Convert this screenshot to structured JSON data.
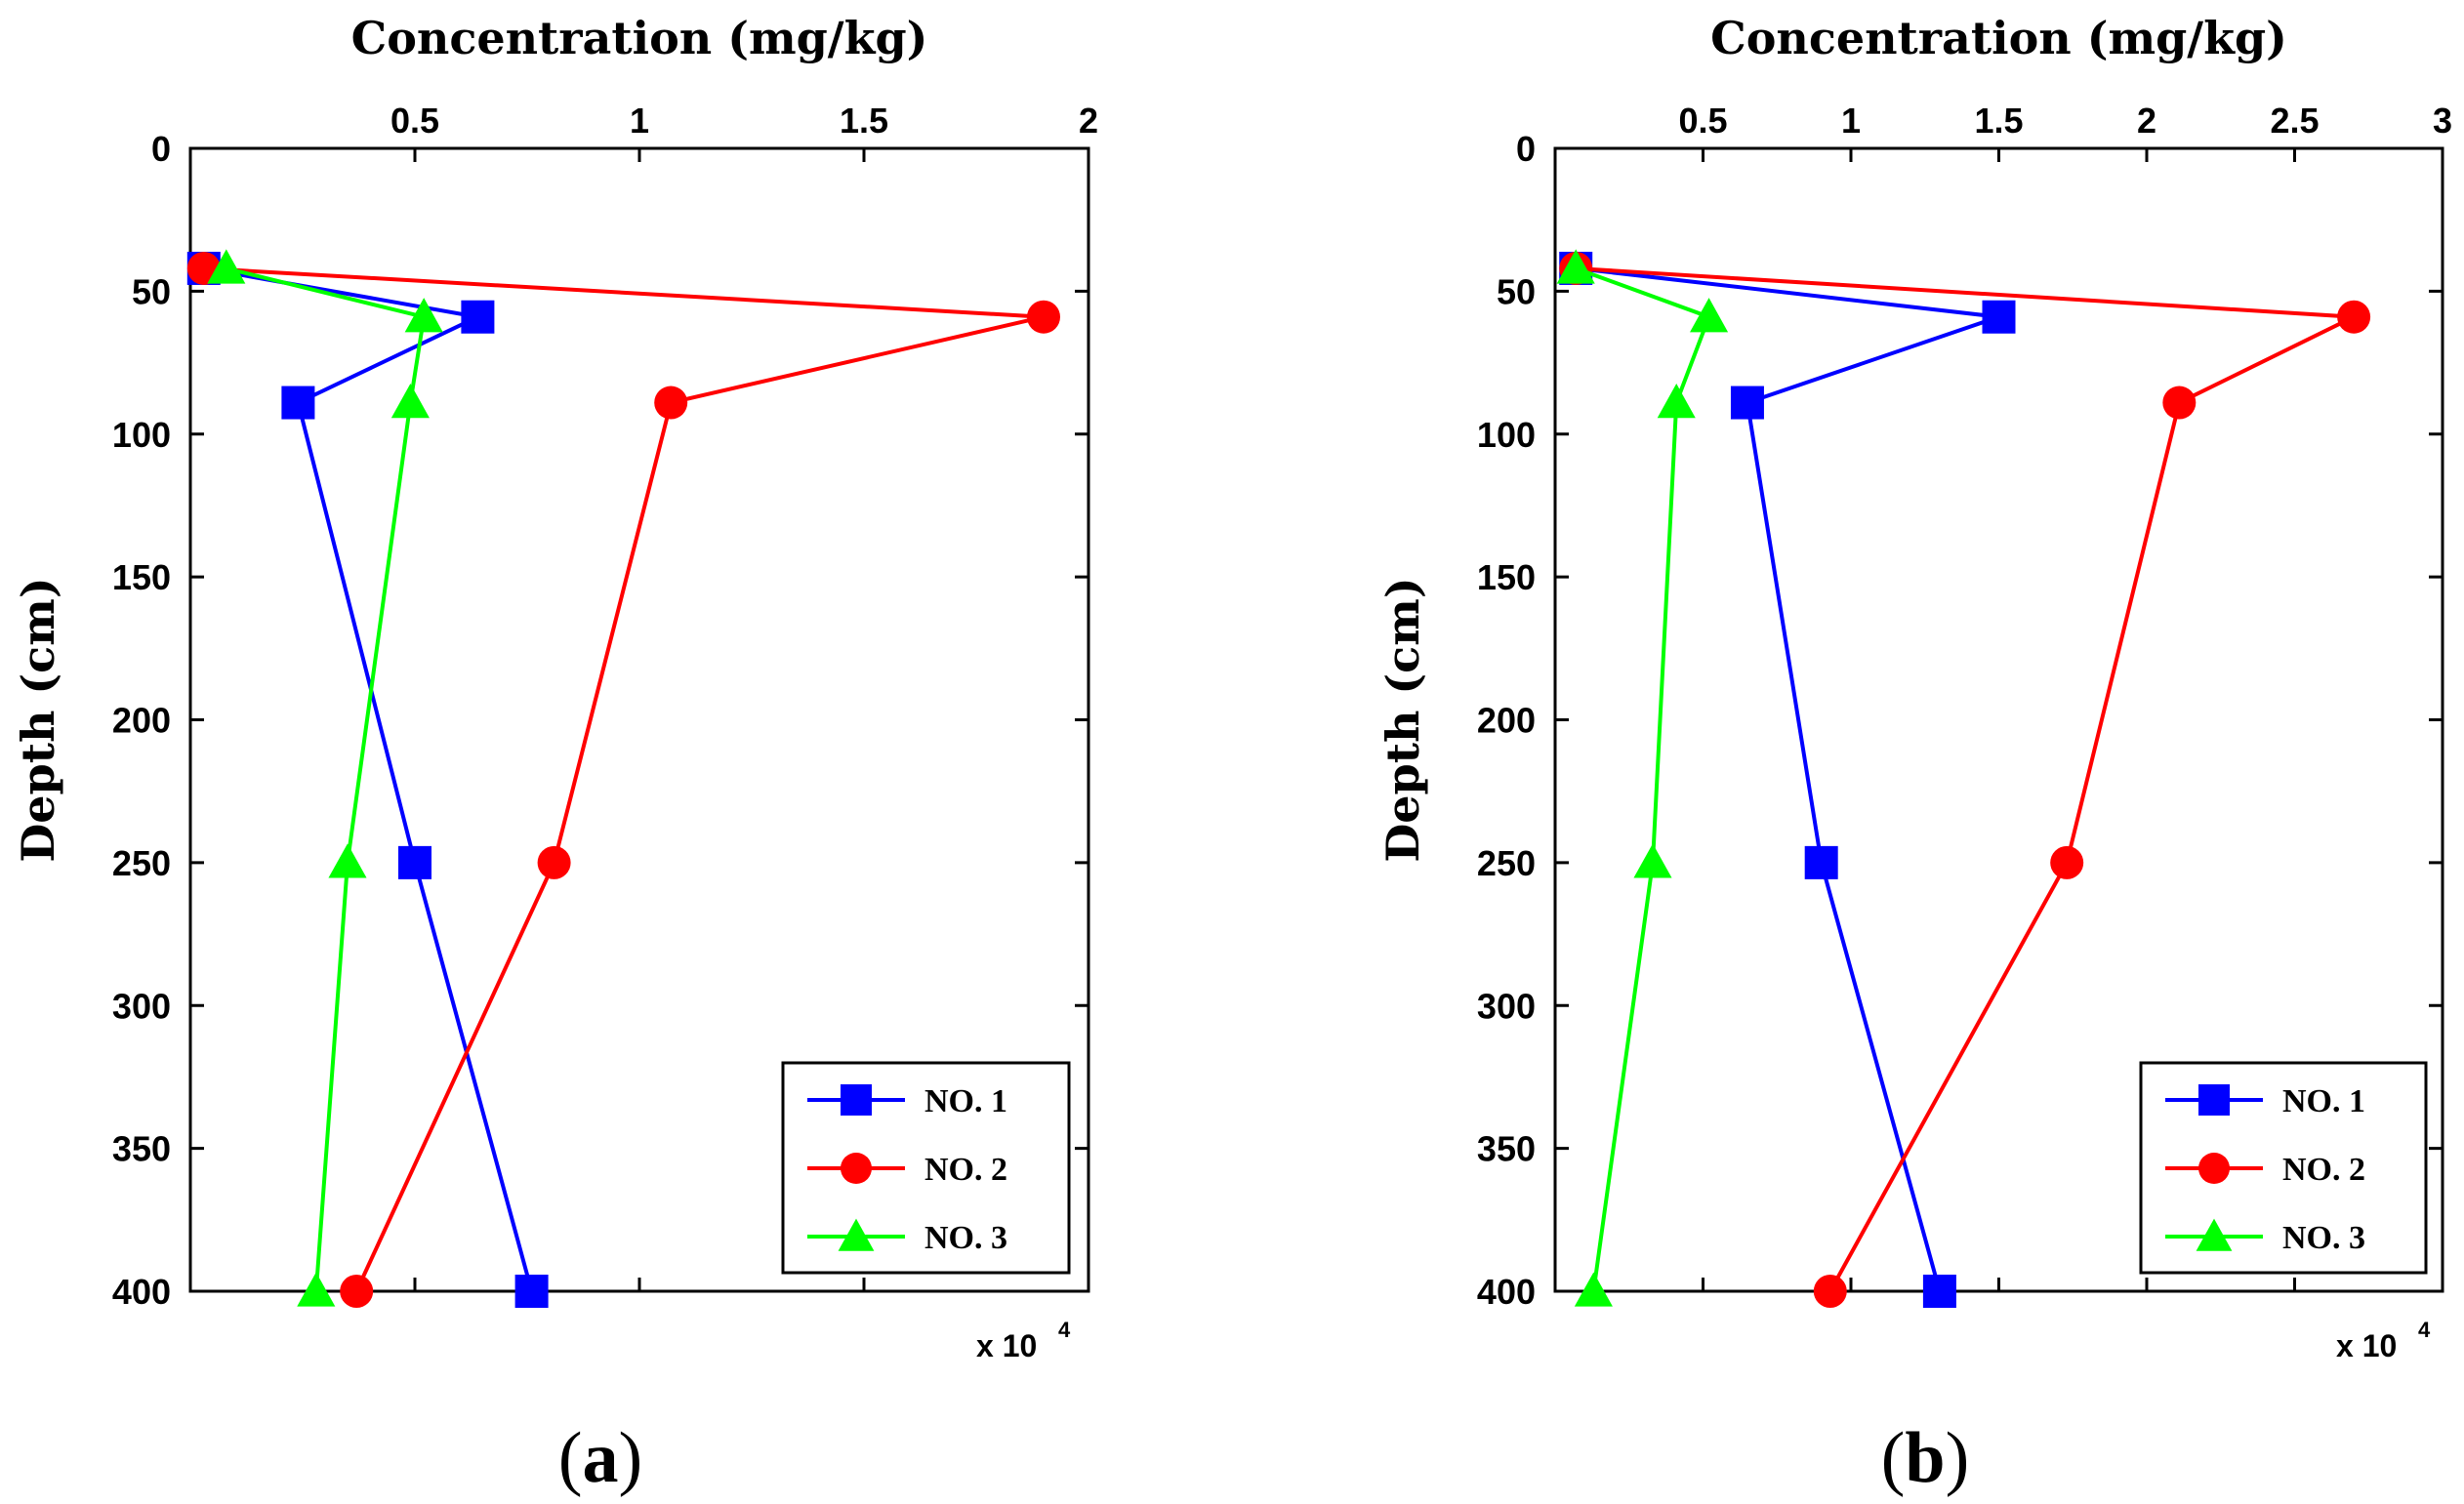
{
  "chart_data": [
    {
      "type": "line",
      "panel_label": "a",
      "xlabel": "Concentration (mg/kg)",
      "ylabel": "Depth (cm)",
      "x_multiplier": "x 10",
      "x_multiplier_exp": "4",
      "xlim": [
        0,
        2
      ],
      "ylim": [
        0,
        400
      ],
      "x_ticks": [
        0.5,
        1,
        1.5,
        2
      ],
      "x_tick_labels": [
        "0.5",
        "1",
        "1.5",
        "2"
      ],
      "y_ticks": [
        0,
        50,
        100,
        150,
        200,
        250,
        300,
        350,
        400
      ],
      "y_tick_labels": [
        "0",
        "50",
        "100",
        "150",
        "200",
        "250",
        "300",
        "350",
        "400"
      ],
      "grid": false,
      "legend_position": "bottom-right",
      "series": [
        {
          "name": "NO. 1",
          "color": "#0000ff",
          "marker": "square",
          "x": [
            0.03,
            0.64,
            0.24,
            0.5,
            0.76
          ],
          "y": [
            42,
            59,
            89,
            250,
            400
          ]
        },
        {
          "name": "NO. 2",
          "color": "#ff0000",
          "marker": "circle",
          "x": [
            0.03,
            1.9,
            1.07,
            0.81,
            0.37
          ],
          "y": [
            42,
            59,
            89,
            250,
            400
          ]
        },
        {
          "name": "NO. 3",
          "color": "#00ff00",
          "marker": "triangle",
          "x": [
            0.08,
            0.52,
            0.49,
            0.35,
            0.28
          ],
          "y": [
            42,
            59,
            89,
            250,
            400
          ]
        }
      ]
    },
    {
      "type": "line",
      "panel_label": "b",
      "xlabel": "Concentration (mg/kg)",
      "ylabel": "Depth (cm)",
      "x_multiplier": "x 10",
      "x_multiplier_exp": "4",
      "xlim": [
        0,
        3
      ],
      "ylim": [
        0,
        400
      ],
      "x_ticks": [
        0.5,
        1,
        1.5,
        2,
        2.5,
        3
      ],
      "x_tick_labels": [
        "0.5",
        "1",
        "1.5",
        "2",
        "2.5",
        "3"
      ],
      "y_ticks": [
        0,
        50,
        100,
        150,
        200,
        250,
        300,
        350,
        400
      ],
      "y_tick_labels": [
        "0",
        "50",
        "100",
        "150",
        "200",
        "250",
        "300",
        "350",
        "400"
      ],
      "grid": false,
      "legend_position": "bottom-right",
      "series": [
        {
          "name": "NO. 1",
          "color": "#0000ff",
          "marker": "square",
          "x": [
            0.07,
            1.5,
            0.65,
            0.9,
            1.3
          ],
          "y": [
            42,
            59,
            89,
            250,
            400
          ]
        },
        {
          "name": "NO. 2",
          "color": "#ff0000",
          "marker": "circle",
          "x": [
            0.07,
            2.7,
            2.11,
            1.73,
            0.93
          ],
          "y": [
            42,
            59,
            89,
            250,
            400
          ]
        },
        {
          "name": "NO. 3",
          "color": "#00ff00",
          "marker": "triangle",
          "x": [
            0.07,
            0.52,
            0.41,
            0.33,
            0.13
          ],
          "y": [
            42,
            59,
            89,
            250,
            400
          ]
        }
      ]
    }
  ]
}
